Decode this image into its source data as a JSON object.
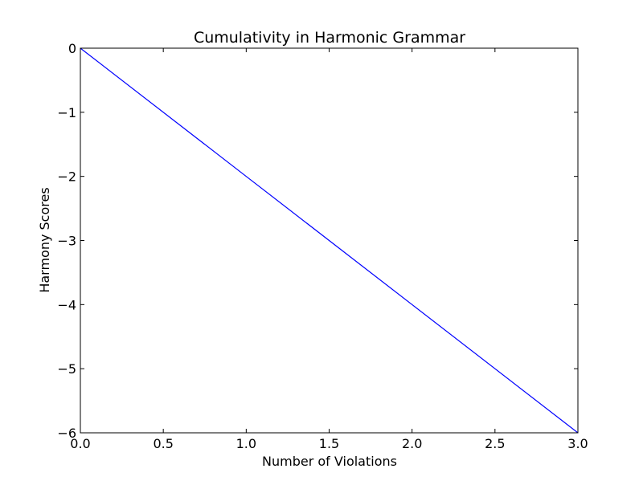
{
  "chart_data": {
    "type": "line",
    "title": "Cumulativity in Harmonic Grammar",
    "xlabel": "Number of Violations",
    "ylabel": "Harmony Scores",
    "xlim": [
      0.0,
      3.0
    ],
    "ylim": [
      -6,
      0
    ],
    "xticks": [
      0.0,
      0.5,
      1.0,
      1.5,
      2.0,
      2.5,
      3.0
    ],
    "xtick_labels": [
      "0.0",
      "0.5",
      "1.0",
      "1.5",
      "2.0",
      "2.5",
      "3.0"
    ],
    "yticks": [
      0,
      -1,
      -2,
      -3,
      -4,
      -5,
      -6
    ],
    "ytick_labels": [
      "0",
      "−1",
      "−2",
      "−3",
      "−4",
      "−5",
      "−6"
    ],
    "grid": false,
    "legend": "none",
    "series": [
      {
        "color": "#0000ff",
        "x": [
          0,
          1,
          2,
          3
        ],
        "y": [
          0,
          -2,
          -4,
          -6
        ]
      }
    ]
  }
}
